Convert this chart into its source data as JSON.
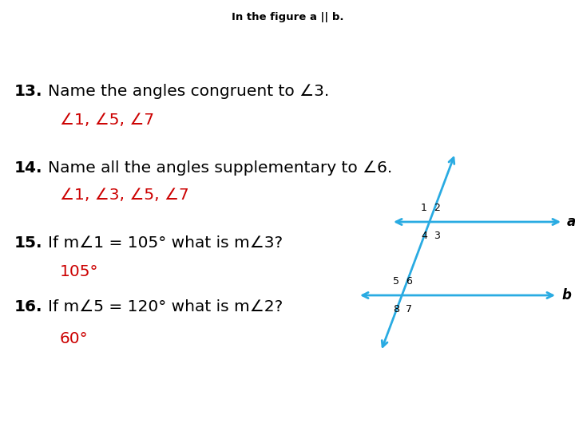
{
  "title": "In the figure a || b.",
  "background_color": "#ffffff",
  "text_color_black": "#000000",
  "text_color_red": "#cc0000",
  "line_color": "#29abe2",
  "label_a": "a",
  "label_b": "b"
}
